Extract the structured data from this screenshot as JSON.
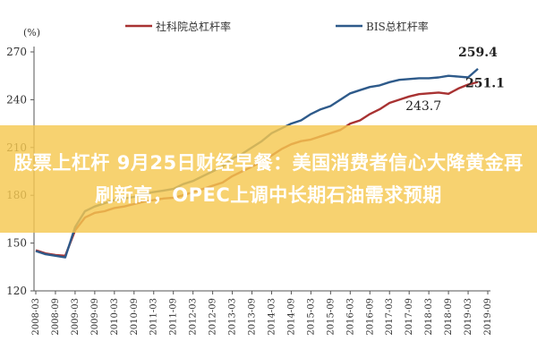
{
  "banner": {
    "headline": "股票上杠杆 9月25日财经早餐：美国消费者信心大降黄金再刷新高，OPEC上调中长期石油需求预期"
  },
  "chart_data": {
    "type": "line",
    "title": "",
    "xlabel": "",
    "ylabel": "(%)",
    "ylim": [
      120,
      270
    ],
    "yticks": [
      120,
      150,
      180,
      210,
      240,
      270
    ],
    "grid": false,
    "legend_position": "top",
    "categories": [
      "2008-03",
      "2008-09",
      "2009-03",
      "2009-09",
      "2010-03",
      "2010-09",
      "2011-03",
      "2011-09",
      "2012-03",
      "2012-09",
      "2013-03",
      "2013-09",
      "2014-03",
      "2014-09",
      "2015-03",
      "2015-09",
      "2016-03",
      "2016-09",
      "2017-03",
      "2017-09",
      "2018-03",
      "2018-09",
      "2019-03",
      "2019-09"
    ],
    "series": [
      {
        "name": "社科院总杠杆率",
        "color": "#a83232",
        "x": [
          "2008-03",
          "2008-06",
          "2008-09",
          "2008-12",
          "2009-03",
          "2009-06",
          "2009-09",
          "2009-12",
          "2010-03",
          "2010-06",
          "2010-09",
          "2010-12",
          "2011-03",
          "2011-06",
          "2011-09",
          "2011-12",
          "2012-03",
          "2012-06",
          "2012-09",
          "2012-12",
          "2013-03",
          "2013-06",
          "2013-09",
          "2013-12",
          "2014-03",
          "2014-06",
          "2014-09",
          "2014-12",
          "2015-03",
          "2015-06",
          "2015-09",
          "2015-12",
          "2016-03",
          "2016-06",
          "2016-09",
          "2016-12",
          "2017-03",
          "2017-06",
          "2017-09",
          "2017-12",
          "2018-03",
          "2018-06",
          "2018-09",
          "2018-12",
          "2019-03",
          "2019-06"
        ],
        "values": [
          145.5,
          143.5,
          142.5,
          142.0,
          158.0,
          166.0,
          169.0,
          170.0,
          172.0,
          173.0,
          174.5,
          176.0,
          177.0,
          178.0,
          178.5,
          180.0,
          182.0,
          184.0,
          186.0,
          188.0,
          192.0,
          195.0,
          198.0,
          201.0,
          205.0,
          209.0,
          212.0,
          214.0,
          215.0,
          217.0,
          219.0,
          221.0,
          225.0,
          227.0,
          231.0,
          234.0,
          238.0,
          240.0,
          242.0,
          243.5,
          244.0,
          244.5,
          243.7,
          247.0,
          249.5,
          251.1
        ]
      },
      {
        "name": "BIS总杠杆率",
        "color": "#2e5a8a",
        "x": [
          "2008-03",
          "2008-06",
          "2008-09",
          "2008-12",
          "2009-03",
          "2009-06",
          "2009-09",
          "2009-12",
          "2010-03",
          "2010-06",
          "2010-09",
          "2010-12",
          "2011-03",
          "2011-06",
          "2011-09",
          "2011-12",
          "2012-03",
          "2012-06",
          "2012-09",
          "2012-12",
          "2013-03",
          "2013-06",
          "2013-09",
          "2013-12",
          "2014-03",
          "2014-06",
          "2014-09",
          "2014-12",
          "2015-03",
          "2015-06",
          "2015-09",
          "2015-12",
          "2016-03",
          "2016-06",
          "2016-09",
          "2016-12",
          "2017-03",
          "2017-06",
          "2017-09",
          "2017-12",
          "2018-03",
          "2018-06",
          "2018-09",
          "2018-12",
          "2019-03",
          "2019-06"
        ],
        "values": [
          145.0,
          143.0,
          142.0,
          141.0,
          160.0,
          170.0,
          173.0,
          175.0,
          177.0,
          178.0,
          179.0,
          181.0,
          182.0,
          183.0,
          184.0,
          187.0,
          189.0,
          192.0,
          195.0,
          198.0,
          203.0,
          206.0,
          210.0,
          214.0,
          219.0,
          222.0,
          225.0,
          227.0,
          231.0,
          234.0,
          236.0,
          240.0,
          244.0,
          246.0,
          248.0,
          249.0,
          251.0,
          252.5,
          253.0,
          253.5,
          253.5,
          254.0,
          255.0,
          254.5,
          254.0,
          259.4
        ]
      }
    ],
    "annotations": [
      {
        "text": "259.4",
        "x": "2019-06",
        "y": 259.4
      },
      {
        "text": "251.1",
        "x": "2019-06",
        "y": 251.1
      },
      {
        "text": "243.7",
        "x": "2018-09",
        "y": 243.7
      }
    ]
  }
}
